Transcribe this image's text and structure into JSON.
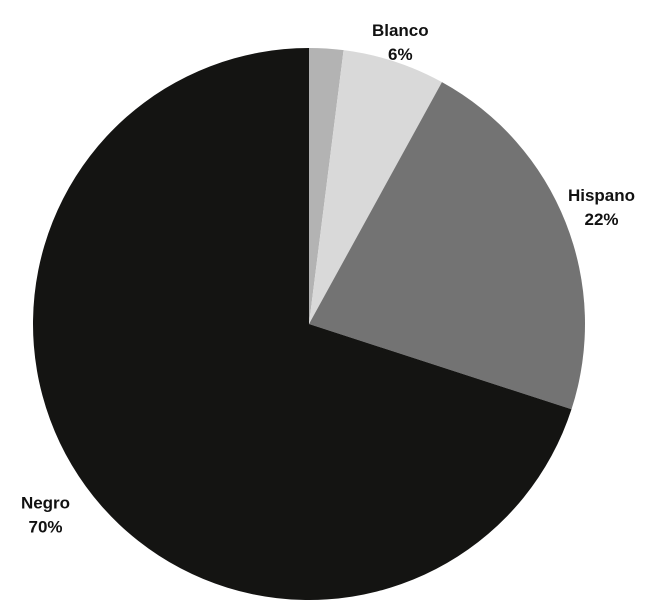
{
  "chart_data": {
    "type": "pie",
    "start_angle_deg": 0,
    "direction": "clockwise",
    "slices": [
      {
        "label": "",
        "value_label": "",
        "value": 2,
        "color": "#b3b3b3"
      },
      {
        "label": "Blanco",
        "value_label": "6%",
        "value": 6,
        "color": "#d9d9d9"
      },
      {
        "label": "Hispano",
        "value_label": "22%",
        "value": 22,
        "color": "#737373"
      },
      {
        "label": "Negro",
        "value_label": "70%",
        "value": 70,
        "color": "#141412"
      }
    ]
  }
}
